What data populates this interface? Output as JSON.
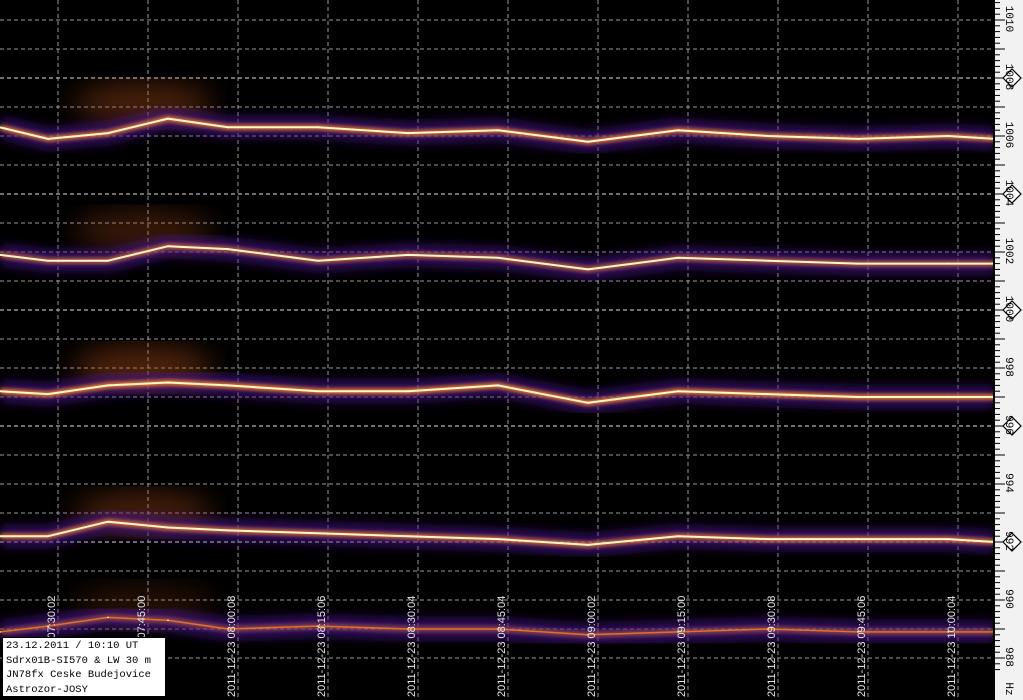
{
  "chart_data": {
    "type": "line",
    "style": "spectrogram / waterfall, dark background, traces in purple-orange-yellow-white heat colors",
    "x_axis": {
      "tick_labels": [
        "2011-12-23 07:30:02",
        "2011-12-23 07:45:00",
        "2011-12-23 08:00:08",
        "2011-12-23 08:15:06",
        "2011-12-23 08:30:04",
        "2011-12-23 08:45:04",
        "2011-12-23 09:00:02",
        "2011-12-23 09:15:00",
        "2011-12-23 09:30:08",
        "2011-12-23 09:45:06",
        "2011-12-23 10:00:04"
      ],
      "range": [
        "07:22",
        "10:08"
      ]
    },
    "y_axis": {
      "unit": "Hz",
      "tick_labels": [
        "1010",
        "1008",
        "1006",
        "1004",
        "1002",
        "1000",
        "998",
        "996",
        "994",
        "992",
        "990",
        "988"
      ],
      "range": [
        987.5,
        1010.7
      ],
      "marked_ticks": [
        1008,
        1004,
        1000,
        996,
        992
      ]
    },
    "grid": true,
    "colors": {
      "background": "#000000",
      "trace_core": "#fff6c8",
      "trace_mid": "#ffa020",
      "trace_halo": "#5a1a9a",
      "grid": "#c8c8c8"
    },
    "times": [
      "07:22",
      "07:30",
      "07:40",
      "07:50",
      "08:00",
      "08:15",
      "08:30",
      "08:45",
      "09:00",
      "09:15",
      "09:30",
      "09:45",
      "10:00",
      "10:08"
    ],
    "series": [
      {
        "values": [
          1006.3,
          1005.9,
          1006.1,
          1006.6,
          1006.3,
          1006.3,
          1006.1,
          1006.2,
          1005.8,
          1006.2,
          1006.0,
          1005.9,
          1006.0,
          1005.9
        ],
        "strength": 0.9
      },
      {
        "values": [
          1001.9,
          1001.7,
          1001.7,
          1002.2,
          1002.1,
          1001.7,
          1001.9,
          1001.8,
          1001.4,
          1001.8,
          1001.7,
          1001.6,
          1001.6,
          1001.6
        ],
        "strength": 0.7
      },
      {
        "values": [
          997.2,
          997.1,
          997.4,
          997.5,
          997.4,
          997.2,
          997.2,
          997.4,
          996.8,
          997.2,
          997.1,
          997.0,
          997.0,
          997.0
        ],
        "strength": 1.0
      },
      {
        "values": [
          992.2,
          992.2,
          992.7,
          992.5,
          992.4,
          992.3,
          992.2,
          992.1,
          991.9,
          992.2,
          992.1,
          992.1,
          992.1,
          992.0
        ],
        "strength": 0.85
      },
      {
        "values": [
          988.9,
          989.1,
          989.4,
          989.3,
          989.0,
          989.1,
          989.0,
          989.0,
          988.8,
          988.9,
          989.0,
          988.9,
          988.9,
          988.9
        ],
        "strength": 0.45
      }
    ]
  },
  "infobox": {
    "line1": "23.12.2011 / 10:10 UT",
    "line2": "Sdrx01B-SI570 & LW 30 m",
    "line3": "JN78fx Ceske Budejovice",
    "line4": "Astrozor-JOSY"
  }
}
